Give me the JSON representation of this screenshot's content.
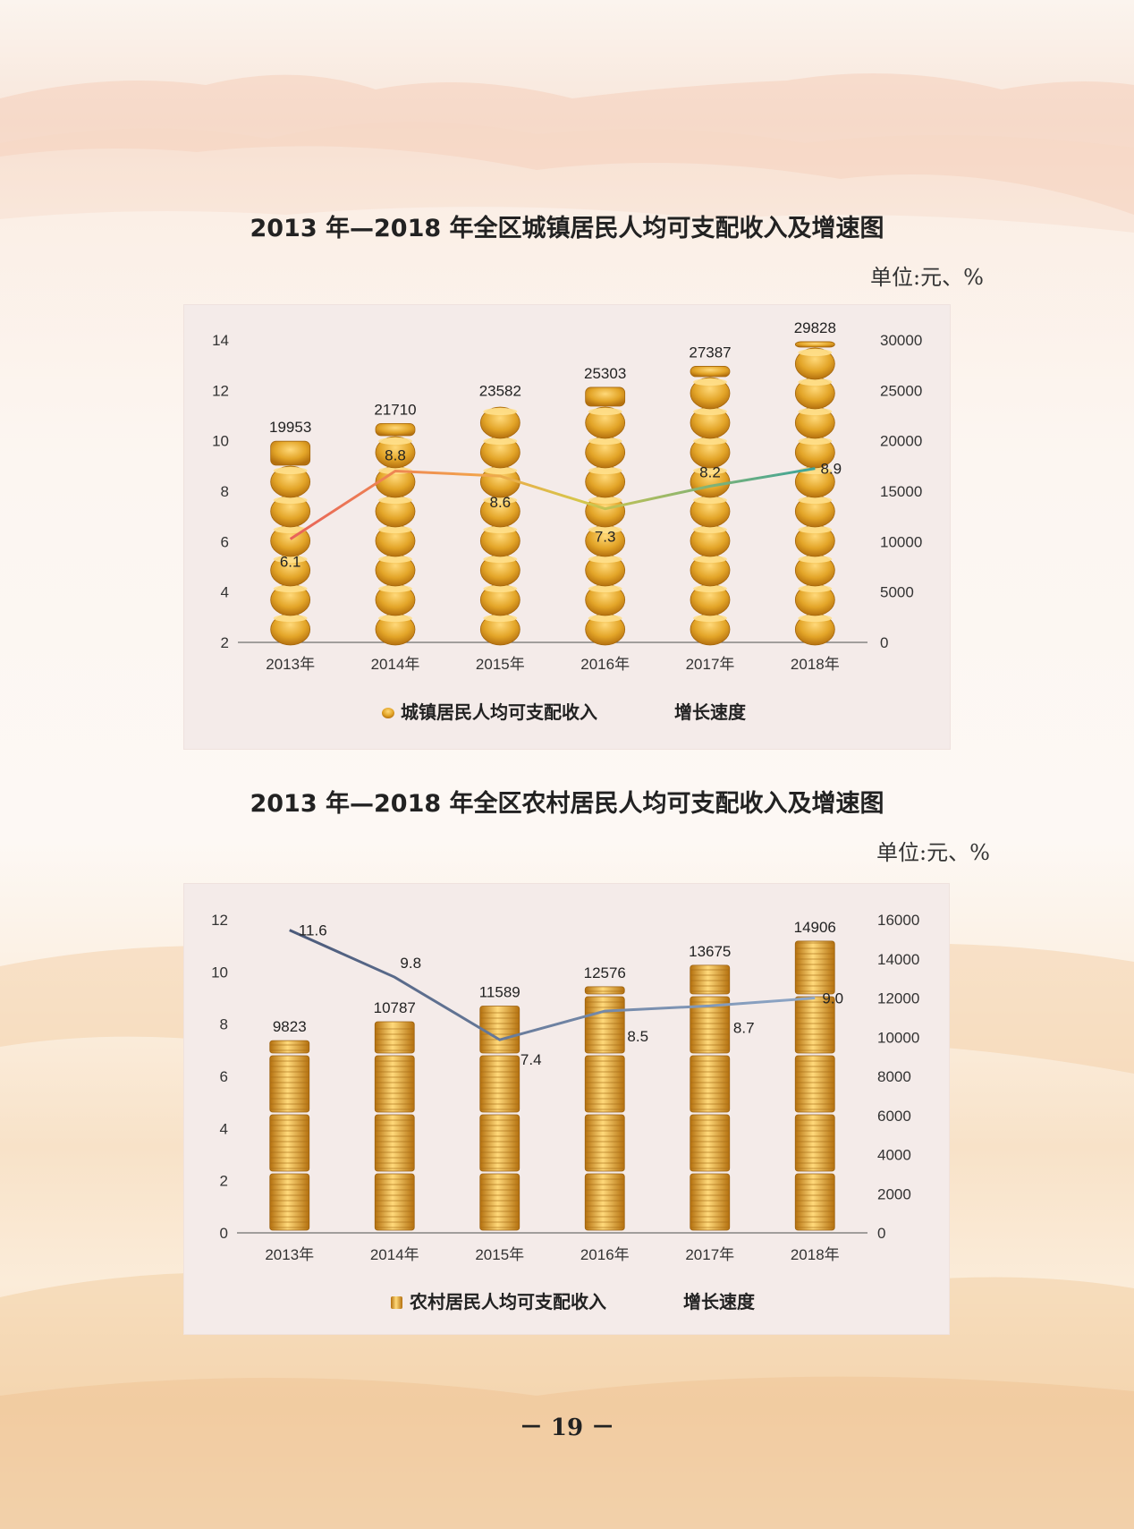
{
  "page": {
    "page_number": "－ 19 －"
  },
  "charts": [
    {
      "title": "2013 年—2018 年全区城镇居民人均可支配收入及增速图",
      "unit": "单位:元、%",
      "legend": {
        "bar": "城镇居民人均可支配收入",
        "line": "增长速度"
      }
    },
    {
      "title": "2013 年—2018 年全区农村居民人均可支配收入及增速图",
      "unit": "单位:元、%",
      "legend": {
        "bar": "农村居民人均可支配收入",
        "line": "增长速度"
      }
    }
  ],
  "colors": {
    "gold": "#e3a528",
    "gold_dark": "#b4700e",
    "gold_light": "#ffd97a",
    "line_urban_start": "#e8625a",
    "line_urban_end": "#3aa39a",
    "line_rural": "#7f98b9"
  },
  "chart_data": [
    {
      "type": "bar",
      "categories": [
        "2013年",
        "2014年",
        "2015年",
        "2016年",
        "2017年",
        "2018年"
      ],
      "series": [
        {
          "name": "城镇居民人均可支配收入",
          "axis": "right",
          "values": [
            19953,
            21710,
            23582,
            25303,
            27387,
            29828
          ]
        },
        {
          "name": "增长速度",
          "axis": "left",
          "type": "line",
          "values": [
            6.1,
            8.8,
            8.6,
            7.3,
            8.2,
            8.9
          ]
        }
      ],
      "y_left": {
        "min": 2,
        "max": 14,
        "ticks": [
          2,
          4,
          6,
          8,
          10,
          12,
          14
        ]
      },
      "y_right": {
        "min": 0,
        "max": 30000,
        "ticks": [
          0,
          5000,
          10000,
          15000,
          20000,
          25000,
          30000
        ]
      },
      "bar_labels": [
        "19953",
        "21710",
        "23582",
        "25303",
        "27387",
        "29828"
      ],
      "line_labels": [
        "6.1",
        "8.8",
        "8.6",
        "7.3",
        "8.2",
        "8.9"
      ],
      "legend_position": "bottom"
    },
    {
      "type": "bar",
      "categories": [
        "2013年",
        "2014年",
        "2015年",
        "2016年",
        "2017年",
        "2018年"
      ],
      "series": [
        {
          "name": "农村居民人均可支配收入",
          "axis": "right",
          "values": [
            9823,
            10787,
            11589,
            12576,
            13675,
            14906
          ]
        },
        {
          "name": "增长速度",
          "axis": "left",
          "type": "line",
          "values": [
            11.6,
            9.8,
            7.4,
            8.5,
            8.7,
            9.0
          ]
        }
      ],
      "y_left": {
        "min": 0,
        "max": 12,
        "ticks": [
          0,
          2,
          4,
          6,
          8,
          10,
          12
        ]
      },
      "y_right": {
        "min": 0,
        "max": 16000,
        "ticks": [
          0,
          2000,
          4000,
          6000,
          8000,
          10000,
          12000,
          14000,
          16000
        ]
      },
      "bar_labels": [
        "9823",
        "10787",
        "11589",
        "12576",
        "13675",
        "14906"
      ],
      "line_labels": [
        "11.6",
        "9.8",
        "7.4",
        "8.5",
        "8.7",
        "9.0"
      ],
      "legend_position": "bottom"
    }
  ]
}
